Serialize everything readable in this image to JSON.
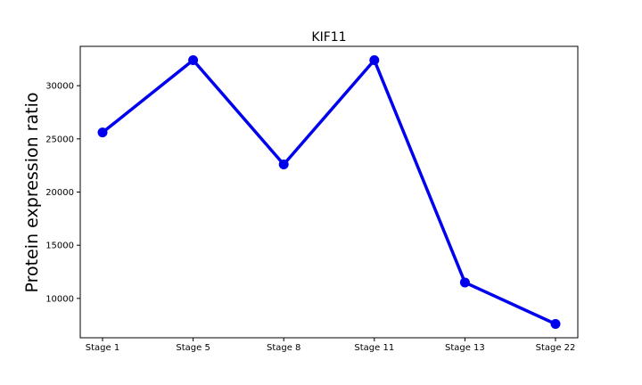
{
  "chart_data": {
    "type": "line",
    "title": "KIF11",
    "xlabel": "",
    "ylabel": "Protein expression ratio",
    "categories": [
      "Stage 1",
      "Stage 5",
      "Stage 8",
      "Stage 11",
      "Stage 13",
      "Stage 22"
    ],
    "series": [
      {
        "values": [
          25600,
          32400,
          22600,
          32400,
          11500,
          7600
        ]
      }
    ],
    "yticks": [
      10000,
      15000,
      20000,
      25000,
      30000
    ],
    "ylim": [
      6300,
      33700
    ],
    "grid": false,
    "colors": {
      "line": "#0000ee",
      "marker": "#0000ee",
      "axes": "#000000"
    }
  }
}
